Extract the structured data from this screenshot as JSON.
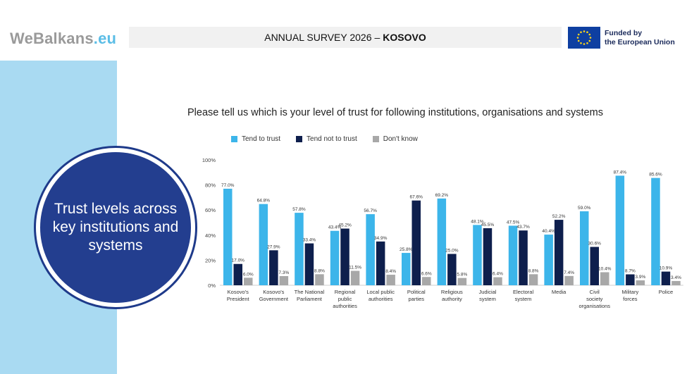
{
  "logo": {
    "part1": "WeBalkans",
    "part2": ".eu"
  },
  "banner": {
    "title": "ANNUAL SURVEY 2026",
    "separator": "–",
    "country": "KOSOVO"
  },
  "eu": {
    "line1": "Funded by",
    "line2": "the European Union",
    "flag_icon": "eu-flag-icon"
  },
  "sidebar": {
    "heading": "Trust levels across key institutions and systems"
  },
  "colors": {
    "trust": "#3cb5ea",
    "not_trust": "#0e1f4d",
    "dont_know": "#a8a8a8",
    "sidebar": "#a9daf2",
    "circle": "#233e8f"
  },
  "chart_data": {
    "type": "bar",
    "title": "Please tell us which is your level of trust for following institutions, organisations and systems",
    "categories": [
      "Kosovo's President",
      "Kosovo's Government",
      "The National Parliament",
      "Regional public authorities",
      "Local public authorities",
      "Political parties",
      "Religious authority",
      "Judicial system",
      "Electoral system",
      "Media",
      "Civil society organisations",
      "Military forces",
      "Police"
    ],
    "series": [
      {
        "name": "Tend to trust",
        "values": [
          77.0,
          64.8,
          57.8,
          43.4,
          56.7,
          25.8,
          69.2,
          48.1,
          47.5,
          40.4,
          59.0,
          87.4,
          85.6
        ],
        "labels": [
          "77.0%",
          "64.8%",
          "57.8%",
          "43.4%",
          "56.7%",
          "25.8%",
          "69.2%",
          "48.1%",
          "47.5%",
          "40.4%",
          "59.0%",
          "87.4%",
          "85.6%"
        ]
      },
      {
        "name": "Tend not to trust",
        "values": [
          17.0,
          27.9,
          33.4,
          45.2,
          34.9,
          67.6,
          25.0,
          45.5,
          43.7,
          52.2,
          30.6,
          8.7,
          10.9
        ],
        "labels": [
          "17.0%",
          "27.9%",
          "33.4%",
          "45.2%",
          "34.9%",
          "67.6%",
          "25.0%",
          "45.5%",
          "43.7%",
          "52.2%",
          "30.6%",
          "8.7%",
          "10.9%"
        ]
      },
      {
        "name": "Don't know",
        "values": [
          6.0,
          7.3,
          8.8,
          11.5,
          8.4,
          6.6,
          5.8,
          6.4,
          8.8,
          7.4,
          10.4,
          3.9,
          3.4
        ],
        "labels": [
          "6.0%",
          "7.3%",
          "8.8%",
          "11.5%",
          "8.4%",
          "6.6%",
          "5.8%",
          "6.4%",
          "8.8%",
          "7.4%",
          "10.4%",
          "3.9%",
          "3.4%"
        ]
      }
    ],
    "ylim": [
      0,
      100
    ],
    "yticks": [
      "0%",
      "20%",
      "40%",
      "60%",
      "80%",
      "100%"
    ],
    "xlabel": "",
    "ylabel": "",
    "legend": "top-left",
    "grid": false
  }
}
